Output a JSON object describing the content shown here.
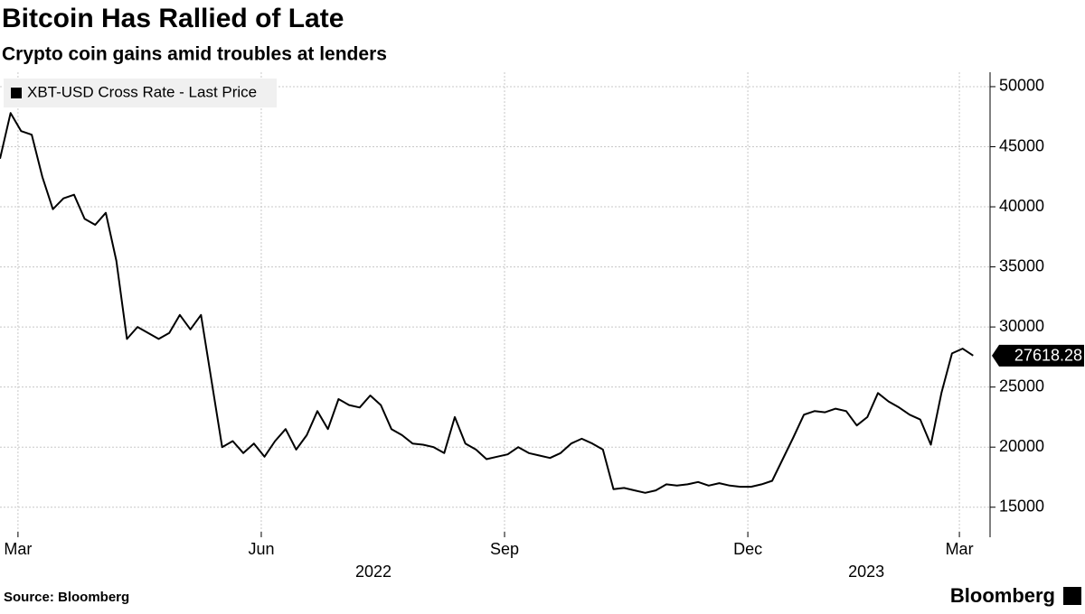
{
  "chart_data": {
    "type": "line",
    "title": "Bitcoin Has Rallied of Late",
    "subtitle": "Crypto coin gains amid troubles at lenders",
    "source": "Source: Bloomberg",
    "brand": "Bloomberg",
    "series": [
      {
        "name": "XBT-USD Cross Rate - Last Price",
        "color": "#000000",
        "values": [
          44000,
          47800,
          46300,
          46000,
          42500,
          39800,
          40700,
          41000,
          39000,
          38500,
          39500,
          35500,
          29000,
          30000,
          29500,
          29000,
          29500,
          31000,
          29800,
          31000,
          25500,
          20000,
          20500,
          19500,
          20300,
          19200,
          20500,
          21500,
          19800,
          21000,
          23000,
          21500,
          24000,
          23500,
          23300,
          24300,
          23500,
          21500,
          21000,
          20300,
          20200,
          20000,
          19500,
          22500,
          20300,
          19800,
          19000,
          19200,
          19400,
          20000,
          19500,
          19300,
          19100,
          19500,
          20300,
          20700,
          20300,
          19800,
          16500,
          16600,
          16400,
          16200,
          16400,
          16900,
          16800,
          16900,
          17100,
          16800,
          17000,
          16800,
          16700,
          16700,
          16900,
          17200,
          19000,
          20800,
          22700,
          23000,
          22900,
          23200,
          23000,
          21800,
          22500,
          24500,
          23800,
          23300,
          22700,
          22300,
          20200,
          24500,
          27800,
          28200,
          27618.28
        ]
      }
    ],
    "xlim": [
      0,
      93.6
    ],
    "xticks": [
      {
        "value": 1.7,
        "label": "Mar"
      },
      {
        "value": 24.7,
        "label": "Jun"
      },
      {
        "value": 47.7,
        "label": "Sep"
      },
      {
        "value": 70.7,
        "label": "Dec"
      },
      {
        "value": 90.7,
        "label": "Mar"
      }
    ],
    "x_group_labels": [
      {
        "value": 35.3,
        "label": "2022"
      },
      {
        "value": 81.9,
        "label": "2023"
      }
    ],
    "ylim": [
      12500,
      51200
    ],
    "yticks": [
      15000,
      20000,
      25000,
      30000,
      35000,
      40000,
      45000,
      50000
    ],
    "grid": true,
    "legend": "top-left"
  }
}
